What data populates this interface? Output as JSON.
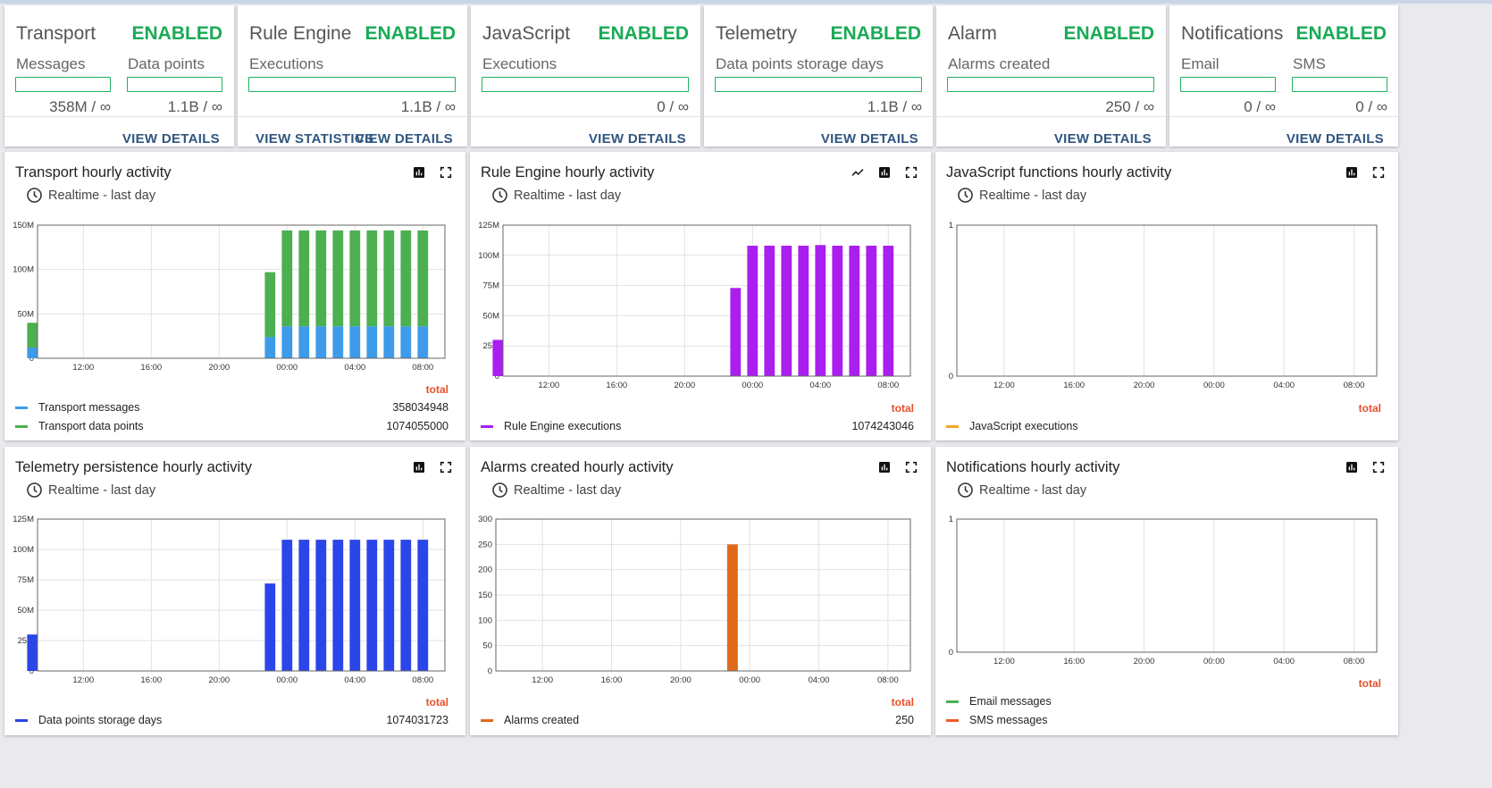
{
  "usage": [
    {
      "name": "Transport",
      "status": "ENABLED",
      "metrics": [
        {
          "label": "Messages",
          "value": "358M / ∞"
        },
        {
          "label": "Data points",
          "value": "1.1B / ∞"
        }
      ],
      "buttons": [
        "VIEW DETAILS"
      ]
    },
    {
      "name": "Rule Engine",
      "status": "ENABLED",
      "metrics": [
        {
          "label": "Executions",
          "value": "1.1B / ∞"
        }
      ],
      "buttons": [
        "VIEW STATISTICS",
        "VIEW DETAILS"
      ]
    },
    {
      "name": "JavaScript",
      "status": "ENABLED",
      "metrics": [
        {
          "label": "Executions",
          "value": "0 / ∞"
        }
      ],
      "buttons": [
        "VIEW DETAILS"
      ]
    },
    {
      "name": "Telemetry",
      "status": "ENABLED",
      "metrics": [
        {
          "label": "Data points storage days",
          "value": "1.1B / ∞"
        }
      ],
      "buttons": [
        "VIEW DETAILS"
      ]
    },
    {
      "name": "Alarm",
      "status": "ENABLED",
      "metrics": [
        {
          "label": "Alarms created",
          "value": "250 / ∞"
        }
      ],
      "buttons": [
        "VIEW DETAILS"
      ]
    },
    {
      "name": "Notifications",
      "status": "ENABLED",
      "metrics": [
        {
          "label": "Email",
          "value": "0 / ∞"
        },
        {
          "label": "SMS",
          "value": "0 / ∞"
        }
      ],
      "buttons": [
        "VIEW DETAILS"
      ]
    }
  ],
  "colors": {
    "enabled": "#1aaa55",
    "bar_border": "#20b060",
    "button": "#305680",
    "total": "#e8502b"
  },
  "charts": [
    {
      "title": "Transport hourly activity",
      "timewindow": "Realtime - last day",
      "icons": [
        "bar-chart-icon",
        "fullscreen-icon"
      ],
      "total_label": "total",
      "legend": [
        {
          "label": "Transport messages",
          "color": "#3d9be9",
          "value": "358034948"
        },
        {
          "label": "Transport data points",
          "color": "#4caf50",
          "value": "1074055000"
        }
      ]
    },
    {
      "title": "Rule Engine hourly activity",
      "timewindow": "Realtime - last day",
      "icons": [
        "trend-line-icon",
        "bar-chart-icon",
        "fullscreen-icon"
      ],
      "total_label": "total",
      "legend": [
        {
          "label": "Rule Engine executions",
          "color": "#aa1ef0",
          "value": "1074243046"
        }
      ]
    },
    {
      "title": "JavaScript functions hourly activity",
      "timewindow": "Realtime - last day",
      "icons": [
        "bar-chart-icon",
        "fullscreen-icon"
      ],
      "total_label": "total",
      "legend": [
        {
          "label": "JavaScript executions",
          "color": "#f5a623",
          "value": ""
        }
      ]
    },
    {
      "title": "Telemetry persistence hourly activity",
      "timewindow": "Realtime - last day",
      "icons": [
        "bar-chart-icon",
        "fullscreen-icon"
      ],
      "total_label": "total",
      "legend": [
        {
          "label": "Data points storage days",
          "color": "#2a45e8",
          "value": "1074031723"
        }
      ]
    },
    {
      "title": "Alarms created hourly activity",
      "timewindow": "Realtime - last day",
      "icons": [
        "bar-chart-icon",
        "fullscreen-icon"
      ],
      "total_label": "total",
      "legend": [
        {
          "label": "Alarms created",
          "color": "#e06a1c",
          "value": "250"
        }
      ]
    },
    {
      "title": "Notifications hourly activity",
      "timewindow": "Realtime - last day",
      "icons": [
        "bar-chart-icon",
        "fullscreen-icon"
      ],
      "total_label": "total",
      "legend": [
        {
          "label": "Email messages",
          "color": "#4caf50",
          "value": ""
        },
        {
          "label": "SMS messages",
          "color": "#f15a24",
          "value": ""
        }
      ]
    }
  ],
  "chart_data": [
    {
      "type": "bar",
      "title": "Transport hourly activity",
      "stacked": true,
      "x": [
        "23:00",
        "00:00",
        "01:00",
        "02:00",
        "03:00",
        "04:00",
        "05:00",
        "06:00",
        "07:00",
        "08:00",
        "09:00"
      ],
      "x_ticks": [
        "12:00",
        "16:00",
        "20:00",
        "00:00",
        "04:00",
        "08:00"
      ],
      "y_ticks": [
        "0",
        "50M",
        "100M",
        "150M"
      ],
      "ylim": [
        0,
        150000000
      ],
      "grid": true,
      "series": [
        {
          "name": "Transport messages",
          "values": [
            24000000,
            36000000,
            36000000,
            36000000,
            36000000,
            36000000,
            36000000,
            36000000,
            36000000,
            36000000,
            12000000
          ]
        },
        {
          "name": "Transport data points",
          "values": [
            73000000,
            108000000,
            108000000,
            108000000,
            108000000,
            108000000,
            108000000,
            108000000,
            108000000,
            108000000,
            28000000
          ]
        }
      ]
    },
    {
      "type": "bar",
      "title": "Rule Engine hourly activity",
      "x": [
        "23:00",
        "00:00",
        "01:00",
        "02:00",
        "03:00",
        "04:00",
        "05:00",
        "06:00",
        "07:00",
        "08:00",
        "09:00"
      ],
      "x_ticks": [
        "12:00",
        "16:00",
        "20:00",
        "00:00",
        "04:00",
        "08:00"
      ],
      "y_ticks": [
        "0",
        "25M",
        "50M",
        "75M",
        "100M",
        "125M"
      ],
      "ylim": [
        0,
        125000000
      ],
      "grid": true,
      "series": [
        {
          "name": "Rule Engine executions",
          "values": [
            73000000,
            108000000,
            108000000,
            108000000,
            108000000,
            108500000,
            108000000,
            108000000,
            108000000,
            108000000,
            30000000
          ]
        }
      ]
    },
    {
      "type": "bar",
      "title": "JavaScript functions hourly activity",
      "x": [],
      "x_ticks": [
        "12:00",
        "16:00",
        "20:00",
        "00:00",
        "04:00",
        "08:00"
      ],
      "y_ticks": [
        "0",
        "1"
      ],
      "ylim": [
        0,
        1
      ],
      "grid": true,
      "series": [
        {
          "name": "JavaScript executions",
          "values": []
        }
      ]
    },
    {
      "type": "bar",
      "title": "Telemetry persistence hourly activity",
      "x": [
        "23:00",
        "00:00",
        "01:00",
        "02:00",
        "03:00",
        "04:00",
        "05:00",
        "06:00",
        "07:00",
        "08:00",
        "09:00"
      ],
      "x_ticks": [
        "12:00",
        "16:00",
        "20:00",
        "00:00",
        "04:00",
        "08:00"
      ],
      "y_ticks": [
        "0",
        "25M",
        "50M",
        "75M",
        "100M",
        "125M"
      ],
      "ylim": [
        0,
        125000000
      ],
      "grid": true,
      "series": [
        {
          "name": "Data points storage days",
          "values": [
            72000000,
            108000000,
            108000000,
            108000000,
            108000000,
            108000000,
            108000000,
            108000000,
            108000000,
            108000000,
            30000000
          ]
        }
      ]
    },
    {
      "type": "bar",
      "title": "Alarms created hourly activity",
      "x": [
        "23:00"
      ],
      "x_ticks": [
        "12:00",
        "16:00",
        "20:00",
        "00:00",
        "04:00",
        "08:00"
      ],
      "y_ticks": [
        "0",
        "50",
        "100",
        "150",
        "200",
        "250",
        "300"
      ],
      "ylim": [
        0,
        300
      ],
      "grid": true,
      "series": [
        {
          "name": "Alarms created",
          "values": [
            250
          ]
        }
      ]
    },
    {
      "type": "bar",
      "title": "Notifications hourly activity",
      "x": [],
      "x_ticks": [
        "12:00",
        "16:00",
        "20:00",
        "00:00",
        "04:00",
        "08:00"
      ],
      "y_ticks": [
        "0",
        "1"
      ],
      "ylim": [
        0,
        1
      ],
      "grid": true,
      "series": [
        {
          "name": "Email messages",
          "values": []
        },
        {
          "name": "SMS messages",
          "values": []
        }
      ]
    }
  ]
}
